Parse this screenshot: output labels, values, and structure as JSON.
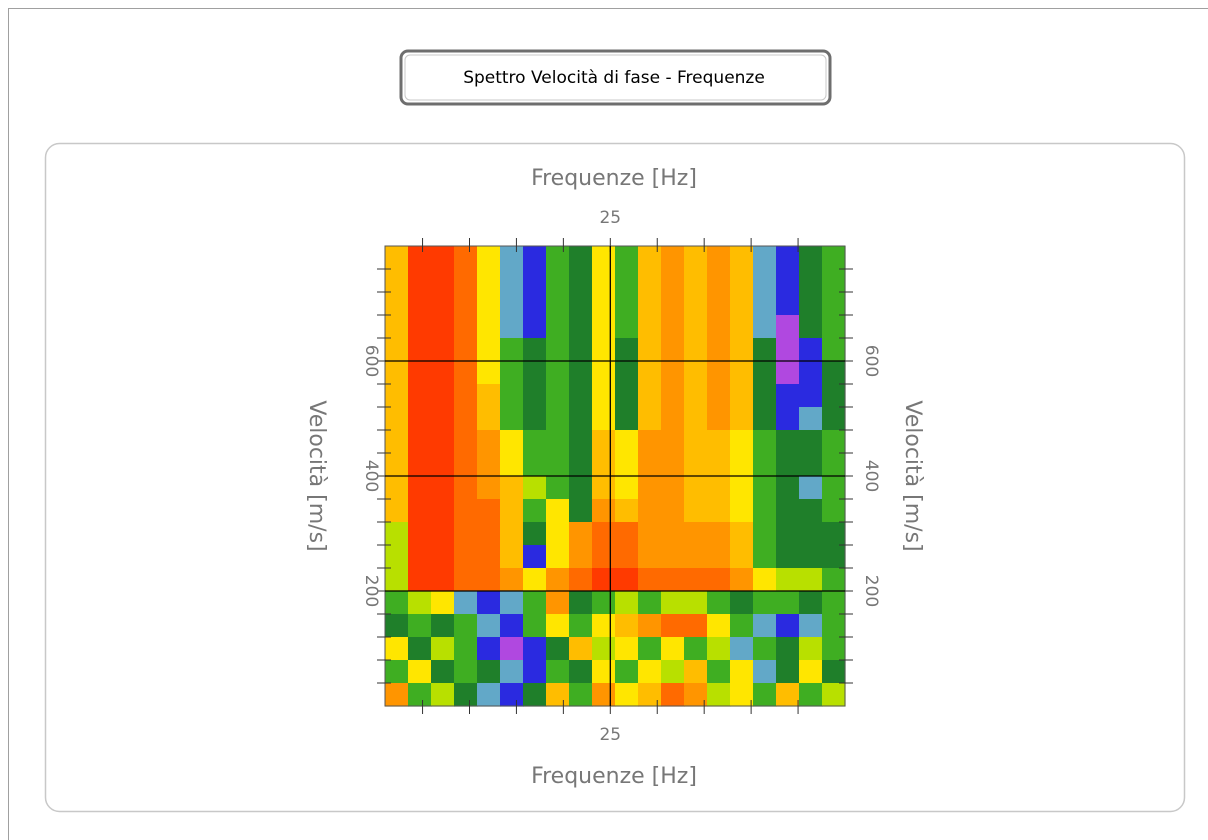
{
  "button": {
    "label": "Spettro Velocità di fase - Frequenze"
  },
  "chart_data": {
    "type": "heatmap",
    "xlabel": "Frequenze [Hz]",
    "ylabel": "Velocità [m/s]",
    "xlim": [
      1,
      50
    ],
    "ylim": [
      0,
      800
    ],
    "xticks": [
      25
    ],
    "yticks": [
      200,
      400,
      600
    ],
    "xminor": [
      5,
      10,
      15,
      20,
      25,
      30,
      35,
      40,
      45
    ],
    "yminor": [
      40,
      80,
      120,
      160,
      200,
      240,
      280,
      320,
      360,
      400,
      440,
      480,
      520,
      560,
      600,
      640,
      680,
      720,
      760
    ],
    "grid": true,
    "colors": [
      "#ff3a00",
      "#ff6a00",
      "#ff9500",
      "#ffbd00",
      "#ffe600",
      "#b8e000",
      "#3fae22",
      "#1f7f2a",
      "#62a8c8",
      "#2a2ae0",
      "#b048e0"
    ],
    "z": [
      [
        3,
        0,
        0,
        1,
        4,
        8,
        9,
        6,
        7,
        4,
        6,
        3,
        2,
        3,
        2,
        3,
        8,
        9,
        7,
        6
      ],
      [
        3,
        0,
        0,
        1,
        4,
        8,
        9,
        6,
        7,
        4,
        6,
        3,
        2,
        3,
        2,
        3,
        8,
        9,
        7,
        6
      ],
      [
        3,
        0,
        0,
        1,
        4,
        8,
        9,
        6,
        7,
        4,
        6,
        3,
        2,
        3,
        2,
        3,
        8,
        9,
        7,
        6
      ],
      [
        3,
        0,
        0,
        1,
        4,
        8,
        9,
        6,
        7,
        4,
        6,
        3,
        2,
        3,
        2,
        3,
        8,
        10,
        7,
        6
      ],
      [
        3,
        0,
        0,
        1,
        4,
        6,
        7,
        6,
        7,
        4,
        7,
        3,
        2,
        3,
        2,
        3,
        7,
        10,
        9,
        6
      ],
      [
        3,
        0,
        0,
        1,
        4,
        6,
        7,
        6,
        7,
        4,
        7,
        3,
        2,
        3,
        2,
        3,
        7,
        10,
        9,
        7
      ],
      [
        3,
        0,
        0,
        1,
        3,
        6,
        7,
        6,
        7,
        4,
        7,
        3,
        2,
        3,
        2,
        3,
        7,
        9,
        9,
        7
      ],
      [
        3,
        0,
        0,
        1,
        3,
        6,
        7,
        6,
        7,
        4,
        7,
        3,
        2,
        3,
        2,
        3,
        7,
        9,
        8,
        7
      ],
      [
        3,
        0,
        0,
        1,
        2,
        4,
        6,
        6,
        7,
        3,
        4,
        2,
        2,
        3,
        3,
        4,
        6,
        7,
        7,
        6
      ],
      [
        3,
        0,
        0,
        1,
        2,
        4,
        6,
        6,
        7,
        3,
        4,
        2,
        2,
        3,
        3,
        4,
        6,
        7,
        7,
        6
      ],
      [
        3,
        0,
        0,
        1,
        2,
        3,
        5,
        6,
        7,
        3,
        4,
        2,
        2,
        3,
        3,
        4,
        6,
        7,
        8,
        6
      ],
      [
        3,
        0,
        0,
        1,
        1,
        3,
        6,
        4,
        7,
        2,
        3,
        2,
        2,
        3,
        3,
        4,
        6,
        7,
        7,
        6
      ],
      [
        5,
        0,
        0,
        1,
        1,
        3,
        7,
        4,
        2,
        1,
        1,
        2,
        2,
        2,
        2,
        3,
        6,
        7,
        7,
        7
      ],
      [
        5,
        0,
        0,
        1,
        1,
        3,
        9,
        4,
        2,
        1,
        1,
        2,
        2,
        2,
        2,
        3,
        6,
        7,
        7,
        7
      ],
      [
        5,
        0,
        0,
        1,
        1,
        2,
        4,
        2,
        1,
        0,
        0,
        1,
        1,
        1,
        1,
        2,
        4,
        5,
        5,
        6
      ],
      [
        6,
        5,
        4,
        8,
        9,
        8,
        6,
        2,
        7,
        6,
        5,
        6,
        5,
        5,
        6,
        7,
        6,
        6,
        7,
        6
      ],
      [
        7,
        6,
        7,
        6,
        8,
        9,
        6,
        4,
        6,
        4,
        3,
        2,
        1,
        1,
        4,
        6,
        8,
        9,
        8,
        6
      ],
      [
        4,
        7,
        5,
        6,
        9,
        10,
        9,
        7,
        3,
        5,
        4,
        6,
        4,
        6,
        5,
        8,
        6,
        7,
        5,
        6
      ],
      [
        6,
        4,
        7,
        6,
        7,
        8,
        9,
        6,
        7,
        4,
        6,
        4,
        5,
        3,
        6,
        4,
        8,
        7,
        4,
        7
      ],
      [
        2,
        6,
        5,
        7,
        8,
        9,
        7,
        3,
        6,
        2,
        4,
        3,
        1,
        2,
        5,
        4,
        6,
        3,
        6,
        5
      ]
    ]
  }
}
